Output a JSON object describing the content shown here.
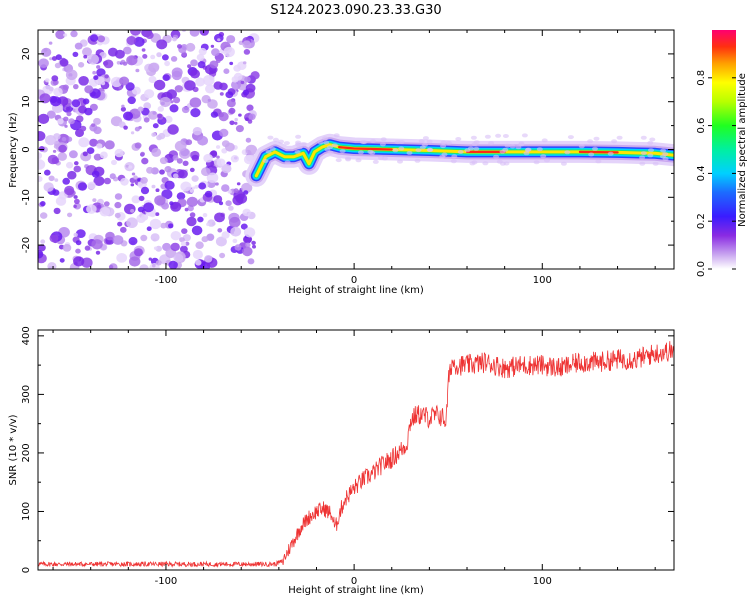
{
  "page": {
    "title": "S124.2023.090.23.33.G30"
  },
  "chart_data": [
    {
      "type": "heatmap",
      "xlabel": "Height of straight line (km)",
      "ylabel": "Frequency (Hz)",
      "xlim": [
        -168,
        170
      ],
      "ylim": [
        -25,
        25
      ],
      "x_ticks": [
        -100,
        0,
        100
      ],
      "x_tick_labels": [
        "-100",
        "0",
        "100"
      ],
      "y_ticks": [
        -20,
        -10,
        0,
        10,
        20
      ],
      "y_tick_labels": [
        "-20",
        "-10",
        "0",
        "10",
        "20"
      ],
      "noise_region_x": [
        -168,
        -52
      ],
      "signal_track": {
        "x": [
          -52,
          -47,
          -42,
          -37,
          -32,
          -27,
          -24,
          -21,
          -17,
          -13,
          -8,
          0,
          20,
          40,
          60,
          80,
          100,
          120,
          140,
          160,
          170
        ],
        "y": [
          -5.5,
          -1.5,
          -0.5,
          -1.5,
          -1.5,
          -0.8,
          -3.0,
          -0.5,
          0.5,
          1.0,
          0.5,
          0.2,
          0.0,
          -0.2,
          -0.5,
          -0.5,
          -0.5,
          -0.5,
          -0.6,
          -0.8,
          -1.2
        ]
      },
      "colorbar": {
        "label": "Normalized spectral amplitude",
        "ticks": [
          0.0,
          0.2,
          0.4,
          0.6,
          0.8
        ],
        "tick_labels": [
          "0.0",
          "0.2",
          "0.4",
          "0.6",
          "0.8"
        ],
        "range": [
          0,
          1
        ]
      }
    },
    {
      "type": "line",
      "xlabel": "Height of straight line (km)",
      "ylabel": "SNR (10 * v/v)",
      "xlim": [
        -168,
        170
      ],
      "ylim": [
        0,
        410
      ],
      "x_ticks": [
        -100,
        0,
        100
      ],
      "x_tick_labels": [
        "-100",
        "0",
        "100"
      ],
      "y_ticks": [
        0,
        100,
        200,
        300,
        400
      ],
      "y_tick_labels": [
        "0",
        "100",
        "200",
        "300",
        "400"
      ],
      "color": "#ee3333",
      "series": [
        {
          "x": [
            -168,
            -150,
            -120,
            -90,
            -60,
            -42,
            -38,
            -33,
            -28,
            -24,
            -20,
            -16,
            -12,
            -10,
            -8,
            -5,
            0,
            5,
            10,
            15,
            20,
            25,
            28,
            30,
            33,
            36,
            40,
            45,
            49,
            50,
            52,
            55,
            60,
            70,
            80,
            90,
            100,
            110,
            120,
            130,
            140,
            150,
            160,
            170
          ],
          "y": [
            10,
            10,
            10,
            10,
            10,
            10,
            15,
            45,
            75,
            90,
            100,
            105,
            95,
            70,
            95,
            120,
            140,
            155,
            165,
            180,
            190,
            205,
            215,
            255,
            265,
            265,
            260,
            265,
            255,
            320,
            355,
            350,
            350,
            355,
            345,
            350,
            350,
            345,
            355,
            355,
            360,
            360,
            370,
            375
          ]
        }
      ]
    }
  ]
}
